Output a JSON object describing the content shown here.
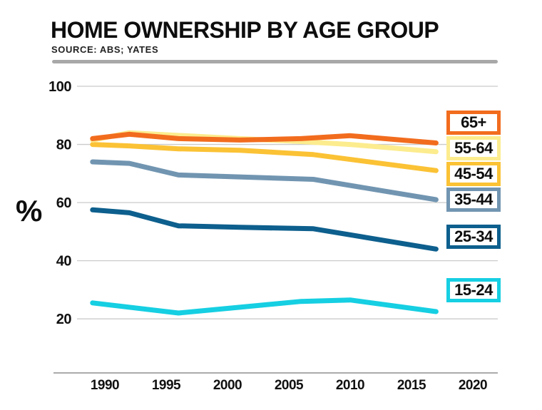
{
  "header": {
    "title": "HOME OWNERSHIP BY AGE GROUP",
    "source": "SOURCE: ABS; YATES"
  },
  "colors": {
    "gridline": "#cbcbcb",
    "axis_line": "#8f8f8f",
    "divider_bar": "#a8a8a8",
    "text": "#0d0d0d"
  },
  "chart_data": {
    "type": "line",
    "title": "HOME OWNERSHIP BY AGE GROUP",
    "subtitle": "SOURCE: ABS; YATES",
    "xlabel": "",
    "ylabel": "%",
    "x_ticks": [
      "1990",
      "1995",
      "2000",
      "2005",
      "2010",
      "2015",
      "2020"
    ],
    "y_ticks": [
      100,
      80,
      60,
      40,
      20
    ],
    "xlim": [
      1988.5,
      2021
    ],
    "ylim": [
      13,
      103
    ],
    "grid": "horizontal-only",
    "legend_position": "right",
    "legend_style": "white boxes with border matching line color",
    "series": [
      {
        "name": "65+",
        "color": "#f26c1e",
        "points": [
          [
            1989,
            82
          ],
          [
            1992,
            83.5
          ],
          [
            1996,
            82
          ],
          [
            2001,
            81.5
          ],
          [
            2006,
            82
          ],
          [
            2010,
            83
          ],
          [
            2017,
            80.5
          ]
        ]
      },
      {
        "name": "55-64",
        "color": "#fcec8e",
        "points": [
          [
            1989,
            81.5
          ],
          [
            1992,
            84
          ],
          [
            2001,
            82
          ],
          [
            2006,
            81
          ],
          [
            2010,
            80
          ],
          [
            2017,
            77.5
          ]
        ]
      },
      {
        "name": "45-54",
        "color": "#fbc235",
        "points": [
          [
            1989,
            80
          ],
          [
            1992,
            79.5
          ],
          [
            1996,
            78.5
          ],
          [
            2001,
            78
          ],
          [
            2007,
            76.5
          ],
          [
            2017,
            71
          ]
        ]
      },
      {
        "name": "35-44",
        "color": "#7195b1",
        "points": [
          [
            1989,
            74
          ],
          [
            1992,
            73.5
          ],
          [
            1996,
            69.5
          ],
          [
            2007,
            68
          ],
          [
            2017,
            61
          ]
        ]
      },
      {
        "name": "25-34",
        "color": "#0d5f8d",
        "points": [
          [
            1989,
            57.5
          ],
          [
            1992,
            56.5
          ],
          [
            1996,
            52
          ],
          [
            2001,
            51.5
          ],
          [
            2007,
            51
          ],
          [
            2017,
            44
          ]
        ]
      },
      {
        "name": "15-24",
        "color": "#16cfe2",
        "points": [
          [
            1989,
            25.5
          ],
          [
            1996,
            22
          ],
          [
            2001,
            24
          ],
          [
            2006,
            26
          ],
          [
            2010,
            26.5
          ],
          [
            2017,
            22.5
          ]
        ]
      }
    ]
  }
}
